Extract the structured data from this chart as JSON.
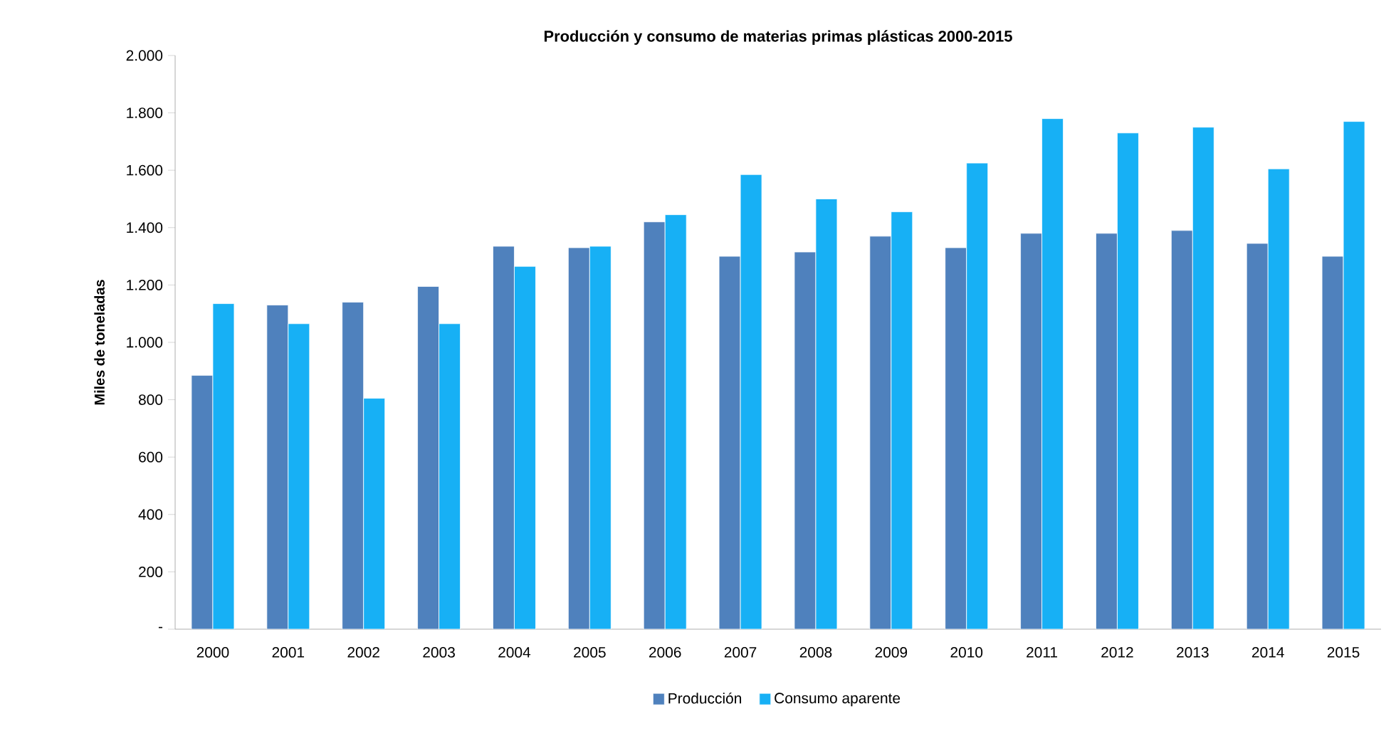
{
  "chart_data": {
    "type": "bar",
    "title": "Producción y consumo de  materias primas plásticas  2000-2015",
    "ylabel": "Miles de toneladas",
    "categories": [
      "2000",
      "2001",
      "2002",
      "2003",
      "2004",
      "2005",
      "2006",
      "2007",
      "2008",
      "2009",
      "2010",
      "2011",
      "2012",
      "2013",
      "2014",
      "2015"
    ],
    "series": [
      {
        "name": "Producción",
        "color": "#4f81bd",
        "values": [
          885,
          1130,
          1140,
          1195,
          1335,
          1330,
          1420,
          1300,
          1315,
          1370,
          1330,
          1380,
          1380,
          1390,
          1345,
          1300
        ]
      },
      {
        "name": "Consumo aparente",
        "color": "#17b0f5",
        "values": [
          1135,
          1065,
          805,
          1065,
          1265,
          1335,
          1445,
          1585,
          1500,
          1455,
          1625,
          1780,
          1730,
          1750,
          1605,
          1770
        ]
      }
    ],
    "ylim": [
      0,
      2000
    ],
    "yticks": [
      {
        "value": 0,
        "label": "-"
      },
      {
        "value": 200,
        "label": "200"
      },
      {
        "value": 400,
        "label": "400"
      },
      {
        "value": 600,
        "label": "600"
      },
      {
        "value": 800,
        "label": "800"
      },
      {
        "value": 1000,
        "label": "1.000"
      },
      {
        "value": 1200,
        "label": "1.200"
      },
      {
        "value": 1400,
        "label": "1.400"
      },
      {
        "value": 1600,
        "label": "1.600"
      },
      {
        "value": 1800,
        "label": "1.800"
      },
      {
        "value": 2000,
        "label": "2.000"
      }
    ],
    "grid": false,
    "legend": "bottom"
  }
}
